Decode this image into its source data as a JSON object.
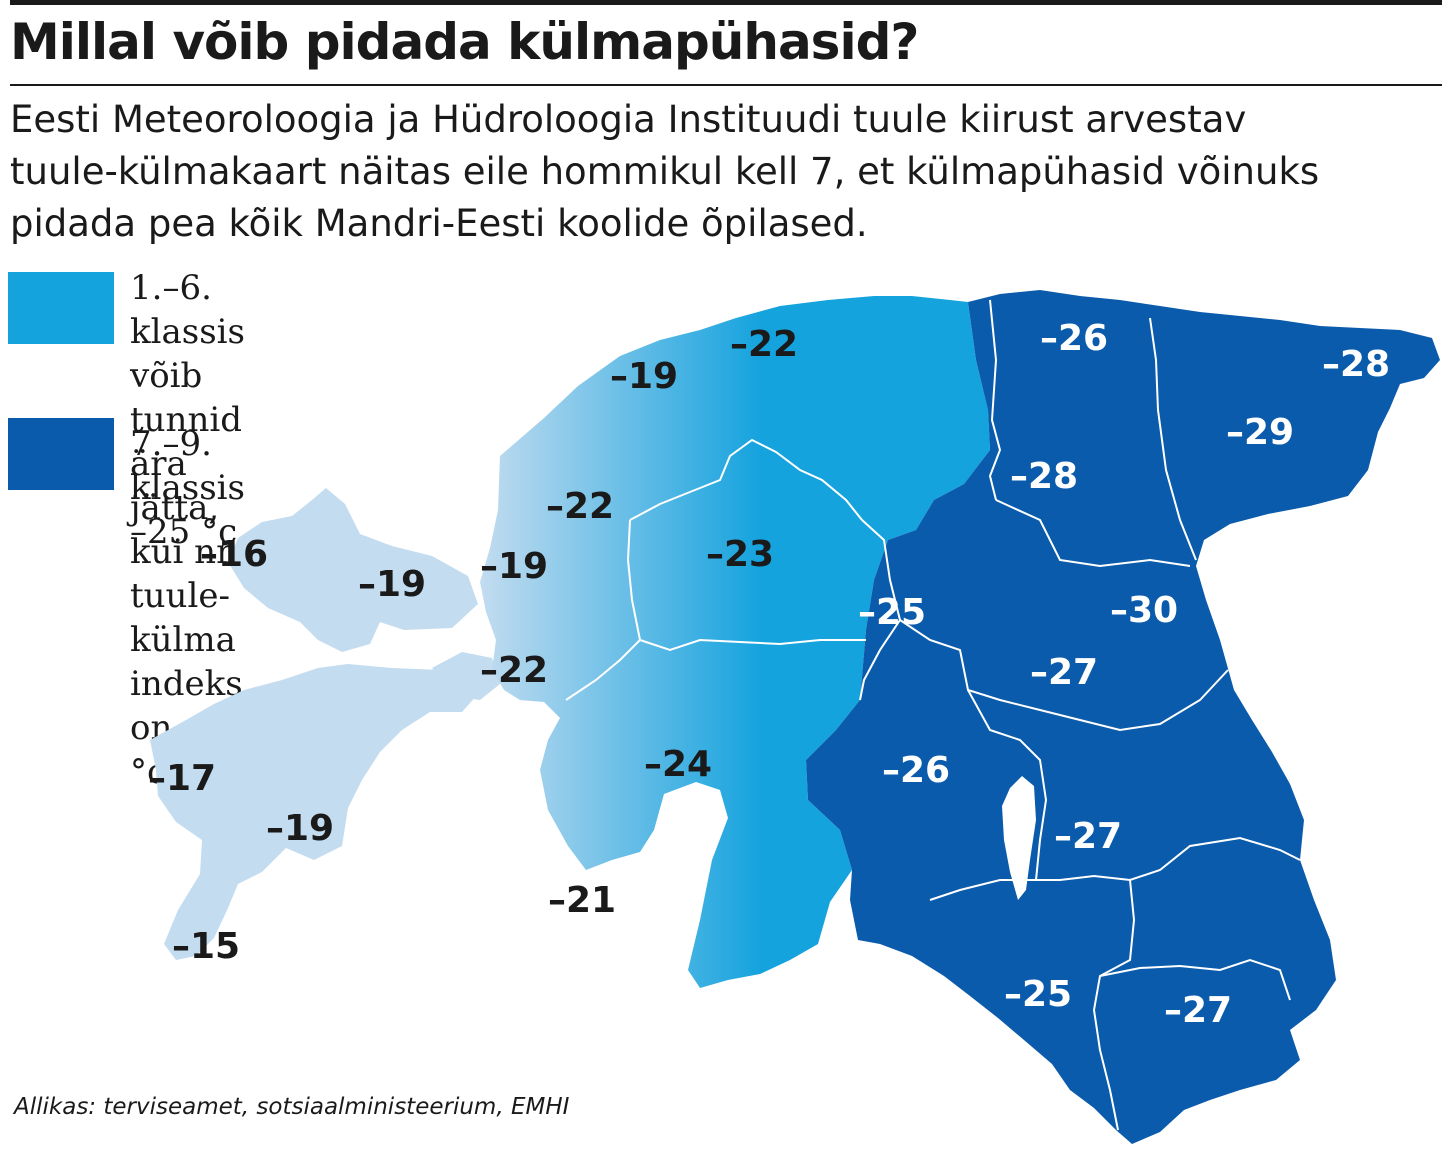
{
  "title": "Millal võib pidada külmapühasid?",
  "subtitle": "Eesti Meteoroloogia  ja Hüdroloogia Instituudi tuule kiirust arvestav\ntuule-külmakaart näitas eile hommikul kell 7, et külmapühasid võinuks\npidada pea kõik Mandri-Eesti koolide õpilased.",
  "legend": [
    {
      "text": "1.–6. klassis võib tunnid\nära jätta, kui nn tuule-\nkülma indeks on –20 °c",
      "color": "#15a3de"
    },
    {
      "text": "7.–9. klassis –25 °c",
      "color": "#0a5bab"
    }
  ],
  "colors": {
    "islands": "#c3dcf0",
    "light_blue": "#15a3de",
    "dark_blue": "#0a5bab",
    "border": "#ffffff"
  },
  "map_values": [
    {
      "region": "hiiumaa-north",
      "label": "–16",
      "tone": "dark"
    },
    {
      "region": "hiiumaa-east",
      "label": "–19",
      "tone": "dark"
    },
    {
      "region": "saaremaa-west",
      "label": "–17",
      "tone": "dark"
    },
    {
      "region": "saaremaa-center",
      "label": "–19",
      "tone": "dark"
    },
    {
      "region": "saaremaa-south",
      "label": "–15",
      "tone": "dark"
    },
    {
      "region": "harjumaa-north",
      "label": "–22",
      "tone": "dark"
    },
    {
      "region": "harjumaa-west",
      "label": "–19",
      "tone": "dark"
    },
    {
      "region": "laanemaa-north",
      "label": "–22",
      "tone": "dark"
    },
    {
      "region": "laanemaa-coast",
      "label": "–19",
      "tone": "dark"
    },
    {
      "region": "laanemaa-south",
      "label": "–22",
      "tone": "dark"
    },
    {
      "region": "raplamaa",
      "label": "–23",
      "tone": "dark"
    },
    {
      "region": "parnumaa",
      "label": "–24",
      "tone": "dark"
    },
    {
      "region": "kihnu",
      "label": "–21",
      "tone": "dark"
    },
    {
      "region": "laane-virumaa",
      "label": "–26",
      "tone": "light"
    },
    {
      "region": "ida-virumaa-east",
      "label": "–28",
      "tone": "light"
    },
    {
      "region": "ida-virumaa",
      "label": "–29",
      "tone": "light"
    },
    {
      "region": "laane-virumaa-south",
      "label": "–28",
      "tone": "light"
    },
    {
      "region": "jarvamaa",
      "label": "–25",
      "tone": "light"
    },
    {
      "region": "jogevamaa-north",
      "label": "–30",
      "tone": "light"
    },
    {
      "region": "jogevamaa",
      "label": "–27",
      "tone": "light"
    },
    {
      "region": "viljandimaa",
      "label": "–26",
      "tone": "light"
    },
    {
      "region": "tartumaa",
      "label": "–27",
      "tone": "light"
    },
    {
      "region": "valgamaa",
      "label": "–25",
      "tone": "light"
    },
    {
      "region": "vorumaa",
      "label": "–27",
      "tone": "light"
    }
  ],
  "source": "Allikas: terviseamet, sotsiaalministeerium, EMHI"
}
